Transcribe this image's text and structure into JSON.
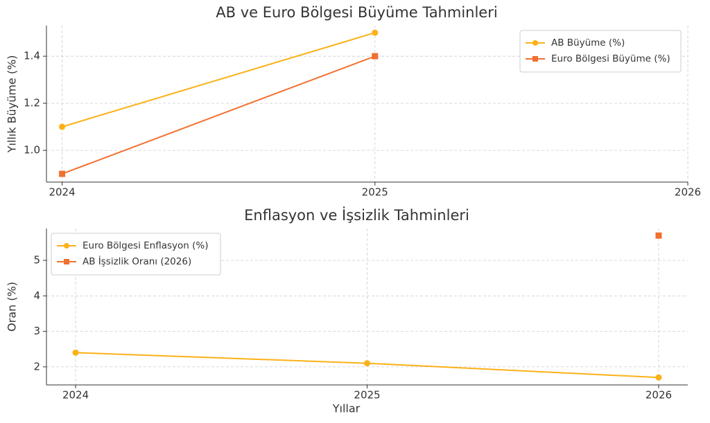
{
  "chart_data": [
    {
      "type": "line",
      "title": "AB ve Euro Bölgesi Büyüme Tahminleri",
      "ylabel": "Yıllık Büyüme (%)",
      "xlim": [
        2023.95,
        2026
      ],
      "xticks": [
        2024,
        2025,
        2026
      ],
      "ylim": [
        0.865,
        1.53
      ],
      "yticks": [
        {
          "value": 1,
          "label": "1.0"
        },
        1.2,
        1.4
      ],
      "grid": true,
      "legend": "upper right",
      "series": [
        {
          "name": "AB Büyüme (%)",
          "color": "#fbb117",
          "marker": "circle",
          "x": [
            2024,
            2025
          ],
          "values": [
            1.1,
            1.5
          ]
        },
        {
          "name": "Euro Bölgesi Büyüme (%)",
          "color": "#f07030",
          "marker": "square",
          "x": [
            2024,
            2025
          ],
          "values": [
            0.9,
            1.4
          ]
        }
      ]
    },
    {
      "type": "line",
      "title": "Enflasyon ve İşsizlik Tahminleri",
      "xlabel": "Yıllar",
      "ylabel": "Oran (%)",
      "xlim": [
        2023.9,
        2026.1
      ],
      "xticks": [
        2024,
        2025,
        2026
      ],
      "ylim": [
        1.49,
        5.9
      ],
      "yticks": [
        2,
        3,
        4,
        5
      ],
      "grid": true,
      "legend": "upper left",
      "series": [
        {
          "name": "Euro Bölgesi Enflasyon (%)",
          "color": "#fbb117",
          "marker": "circle",
          "x": [
            2024,
            2025,
            2026
          ],
          "values": [
            2.4,
            2.1,
            1.7
          ]
        },
        {
          "name": "AB İşsizlik Oranı (2026)",
          "color": "#f07030",
          "marker": "square",
          "x": [
            2026
          ],
          "values": [
            5.7
          ]
        }
      ]
    }
  ]
}
